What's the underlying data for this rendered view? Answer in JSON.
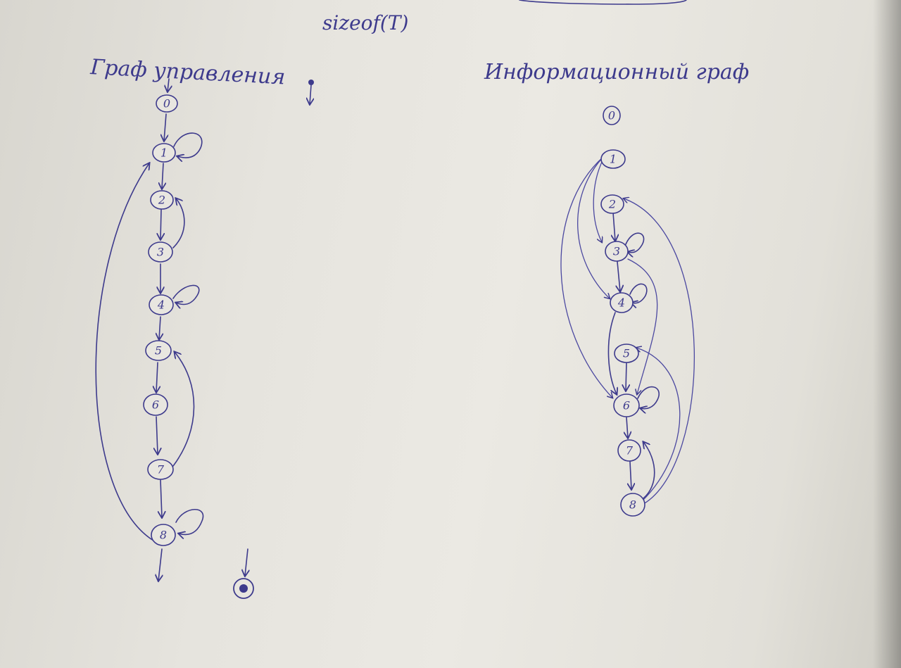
{
  "header": {
    "top_note": "sizeof(T)"
  },
  "control_graph": {
    "title": "Граф управления",
    "nodes": [
      "0",
      "1",
      "2",
      "3",
      "4",
      "5",
      "6",
      "7",
      "8"
    ]
  },
  "info_graph": {
    "title": "Информационный граф",
    "nodes": [
      "0",
      "1",
      "2",
      "3",
      "4",
      "5",
      "6",
      "7",
      "8"
    ]
  },
  "colors": {
    "ink": "#3d3a8c",
    "paper": "#e8e6e0"
  }
}
